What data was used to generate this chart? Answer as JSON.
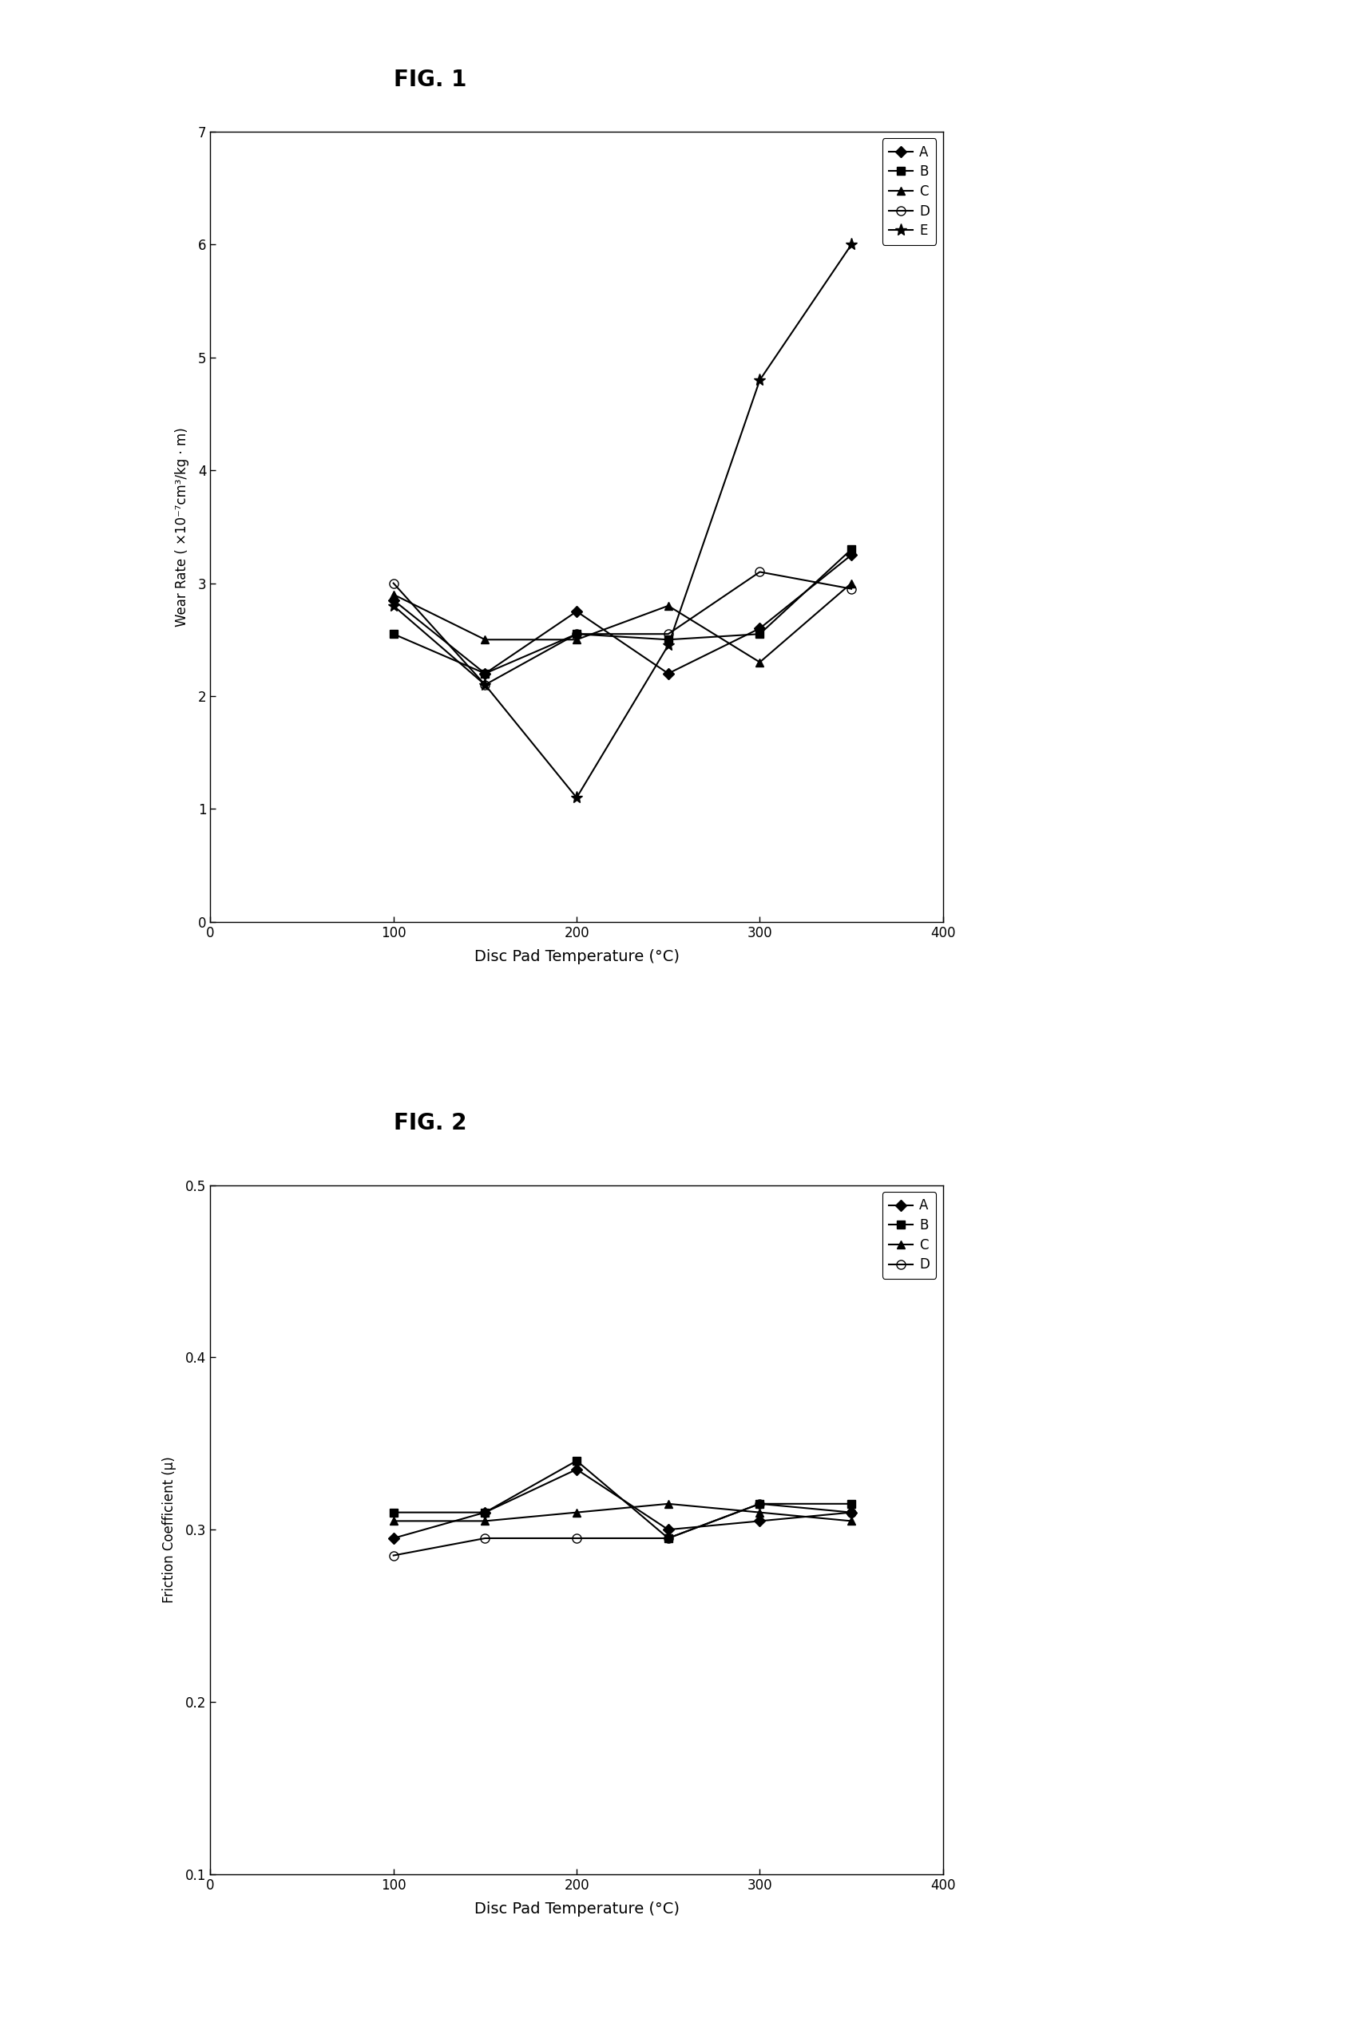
{
  "fig1": {
    "title": "FIG. 1",
    "xlabel": "Disc Pad Temperature (°C)",
    "ylabel_line1": "Wear Rate ( ×10⁻⁷cm³/kg · m)",
    "xlim": [
      0,
      400
    ],
    "ylim": [
      0,
      7
    ],
    "xticks": [
      0,
      100,
      200,
      300,
      400
    ],
    "yticks": [
      0,
      1,
      2,
      3,
      4,
      5,
      6,
      7
    ],
    "series_order": [
      "A",
      "B",
      "C",
      "D",
      "E"
    ],
    "series": {
      "A": {
        "x": [
          100,
          150,
          200,
          250,
          300,
          350
        ],
        "y": [
          2.85,
          2.2,
          2.75,
          2.2,
          2.6,
          3.25
        ],
        "marker": "D",
        "fillstyle": "full",
        "markersize": 7,
        "linewidth": 1.5
      },
      "B": {
        "x": [
          100,
          150,
          200,
          250,
          300,
          350
        ],
        "y": [
          2.55,
          2.2,
          2.55,
          2.5,
          2.55,
          3.3
        ],
        "marker": "s",
        "fillstyle": "full",
        "markersize": 7,
        "linewidth": 1.5
      },
      "C": {
        "x": [
          100,
          150,
          200,
          250,
          300,
          350
        ],
        "y": [
          2.9,
          2.5,
          2.5,
          2.8,
          2.3,
          3.0
        ],
        "marker": "^",
        "fillstyle": "full",
        "markersize": 7,
        "linewidth": 1.5
      },
      "D": {
        "x": [
          100,
          150,
          200,
          250,
          300,
          350
        ],
        "y": [
          3.0,
          2.1,
          2.55,
          2.55,
          3.1,
          2.95
        ],
        "marker": "o",
        "fillstyle": "none",
        "markersize": 8,
        "linewidth": 1.5
      },
      "E": {
        "x": [
          100,
          150,
          200,
          250,
          300,
          350
        ],
        "y": [
          2.8,
          2.1,
          1.1,
          2.45,
          4.8,
          6.0
        ],
        "marker": "*",
        "fillstyle": "full",
        "markersize": 11,
        "linewidth": 1.5
      }
    }
  },
  "fig2": {
    "title": "FIG. 2",
    "xlabel": "Disc Pad Temperature (°C)",
    "ylabel": "Friction Coefficient (μ)",
    "xlim": [
      0,
      400
    ],
    "ylim": [
      0.1,
      0.5
    ],
    "xticks": [
      0,
      100,
      200,
      300,
      400
    ],
    "yticks": [
      0.1,
      0.2,
      0.3,
      0.4,
      0.5
    ],
    "series_order": [
      "A",
      "B",
      "C",
      "D"
    ],
    "series": {
      "A": {
        "x": [
          100,
          150,
          200,
          250,
          300,
          350
        ],
        "y": [
          0.295,
          0.31,
          0.335,
          0.3,
          0.305,
          0.31
        ],
        "marker": "D",
        "fillstyle": "full",
        "markersize": 7,
        "linewidth": 1.5
      },
      "B": {
        "x": [
          100,
          150,
          200,
          250,
          300,
          350
        ],
        "y": [
          0.31,
          0.31,
          0.34,
          0.295,
          0.315,
          0.315
        ],
        "marker": "s",
        "fillstyle": "full",
        "markersize": 7,
        "linewidth": 1.5
      },
      "C": {
        "x": [
          100,
          150,
          200,
          250,
          300,
          350
        ],
        "y": [
          0.305,
          0.305,
          0.31,
          0.315,
          0.31,
          0.305
        ],
        "marker": "^",
        "fillstyle": "full",
        "markersize": 7,
        "linewidth": 1.5
      },
      "D": {
        "x": [
          100,
          150,
          200,
          250,
          300,
          350
        ],
        "y": [
          0.285,
          0.295,
          0.295,
          0.295,
          0.315,
          0.31
        ],
        "marker": "o",
        "fillstyle": "none",
        "markersize": 8,
        "linewidth": 1.5
      }
    }
  },
  "background_color": "white"
}
